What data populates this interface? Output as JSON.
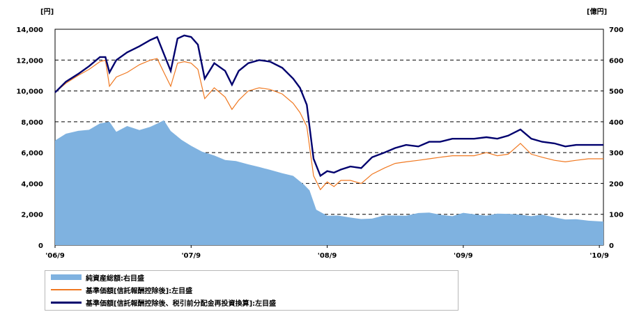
{
  "chart_data": {
    "type": "line",
    "left_axis": {
      "unit": "[円]",
      "ylim": [
        0,
        14000
      ],
      "ticks": [
        "0",
        "2,000",
        "4,000",
        "6,000",
        "8,000",
        "10,000",
        "12,000",
        "14,000"
      ]
    },
    "right_axis": {
      "unit": "[億円]",
      "ylim": [
        0,
        700
      ],
      "ticks": [
        "0",
        "100",
        "200",
        "300",
        "400",
        "500",
        "600",
        "700"
      ]
    },
    "x_ticks": [
      "'06/9",
      "'07/9",
      "'08/9",
      "'09/9",
      "'10/9"
    ],
    "xlim": [
      2006.75,
      2010.78
    ],
    "grid": "dashed horizontal",
    "series": [
      {
        "name": "純資産総額:右目盛",
        "type": "area",
        "axis": "right",
        "color": "#7fb2e0",
        "x": [
          2006.75,
          2006.83,
          2006.92,
          2007.0,
          2007.08,
          2007.15,
          2007.2,
          2007.28,
          2007.37,
          2007.45,
          2007.5,
          2007.55,
          2007.6,
          2007.68,
          2007.75,
          2007.83,
          2007.92,
          2008.0,
          2008.08,
          2008.17,
          2008.25,
          2008.33,
          2008.42,
          2008.5,
          2008.58,
          2008.62,
          2008.67,
          2008.75,
          2008.83,
          2008.92,
          2009.0,
          2009.08,
          2009.17,
          2009.25,
          2009.33,
          2009.42,
          2009.5,
          2009.58,
          2009.67,
          2009.75,
          2009.83,
          2009.92,
          2010.0,
          2010.08,
          2010.17,
          2010.25,
          2010.33,
          2010.42,
          2010.5,
          2010.58,
          2010.67,
          2010.78
        ],
        "values": [
          335,
          360,
          372,
          378,
          392,
          400,
          370,
          382,
          372,
          385,
          398,
          402,
          370,
          344,
          318,
          302,
          292,
          280,
          270,
          262,
          256,
          240,
          232,
          226,
          200,
          175,
          115,
          98,
          92,
          88,
          86,
          90,
          94,
          96,
          98,
          100,
          104,
          100,
          98,
          102,
          100,
          98,
          98,
          100,
          100,
          98,
          96,
          90,
          86,
          80,
          78,
          78
        ]
      },
      {
        "name": "基準価額[信託報酬控除後]:左目盛",
        "type": "line",
        "axis": "left",
        "color": "#f07820",
        "x": [
          2006.75,
          2006.83,
          2006.92,
          2007.0,
          2007.08,
          2007.12,
          2007.15,
          2007.2,
          2007.28,
          2007.37,
          2007.45,
          2007.5,
          2007.55,
          2007.6,
          2007.65,
          2007.7,
          2007.75,
          2007.8,
          2007.85,
          2007.92,
          2008.0,
          2008.05,
          2008.1,
          2008.17,
          2008.25,
          2008.33,
          2008.42,
          2008.5,
          2008.55,
          2008.6,
          2008.65,
          2008.7,
          2008.75,
          2008.8,
          2008.85,
          2008.92,
          2009.0,
          2009.08,
          2009.17,
          2009.25,
          2009.33,
          2009.42,
          2009.5,
          2009.58,
          2009.67,
          2009.75,
          2009.83,
          2009.92,
          2010.0,
          2010.08,
          2010.17,
          2010.25,
          2010.33,
          2010.42,
          2010.5,
          2010.58,
          2010.67,
          2010.78
        ],
        "values": [
          9900,
          10500,
          11000,
          11400,
          11900,
          12000,
          10300,
          10900,
          11200,
          11700,
          12000,
          12100,
          11200,
          10300,
          11800,
          11900,
          11800,
          11400,
          9500,
          10200,
          9600,
          8800,
          9400,
          10000,
          10200,
          10100,
          9800,
          9200,
          8600,
          7700,
          4500,
          3600,
          4100,
          3800,
          4200,
          4200,
          4000,
          4600,
          5000,
          5300,
          5400,
          5500,
          5600,
          5700,
          5800,
          5800,
          5800,
          6000,
          5800,
          5900,
          6600,
          5900,
          5700,
          5500,
          5400,
          5500,
          5600,
          5600
        ]
      },
      {
        "name": "基準価額[信託報酬控除後、税引前分配金再投資換算]:左目盛",
        "type": "line",
        "axis": "left",
        "color": "#00006e",
        "x": [
          2006.75,
          2006.83,
          2006.92,
          2007.0,
          2007.08,
          2007.12,
          2007.15,
          2007.2,
          2007.28,
          2007.37,
          2007.45,
          2007.5,
          2007.55,
          2007.6,
          2007.65,
          2007.7,
          2007.75,
          2007.8,
          2007.85,
          2007.92,
          2008.0,
          2008.05,
          2008.1,
          2008.17,
          2008.25,
          2008.33,
          2008.42,
          2008.5,
          2008.55,
          2008.6,
          2008.65,
          2008.7,
          2008.75,
          2008.8,
          2008.85,
          2008.92,
          2009.0,
          2009.08,
          2009.17,
          2009.25,
          2009.33,
          2009.42,
          2009.5,
          2009.58,
          2009.67,
          2009.75,
          2009.83,
          2009.92,
          2010.0,
          2010.08,
          2010.17,
          2010.25,
          2010.33,
          2010.42,
          2010.5,
          2010.58,
          2010.67,
          2010.78
        ],
        "values": [
          9900,
          10600,
          11100,
          11600,
          12200,
          12200,
          11200,
          12000,
          12500,
          12900,
          13300,
          13500,
          12400,
          11300,
          13400,
          13600,
          13500,
          13000,
          10800,
          11800,
          11300,
          10400,
          11300,
          11800,
          12000,
          11900,
          11500,
          10800,
          10200,
          9100,
          5600,
          4500,
          4800,
          4700,
          4900,
          5100,
          5000,
          5700,
          6000,
          6300,
          6500,
          6400,
          6700,
          6700,
          6900,
          6900,
          6900,
          7000,
          6900,
          7100,
          7500,
          6900,
          6700,
          6600,
          6400,
          6500,
          6500,
          6500
        ]
      }
    ]
  }
}
